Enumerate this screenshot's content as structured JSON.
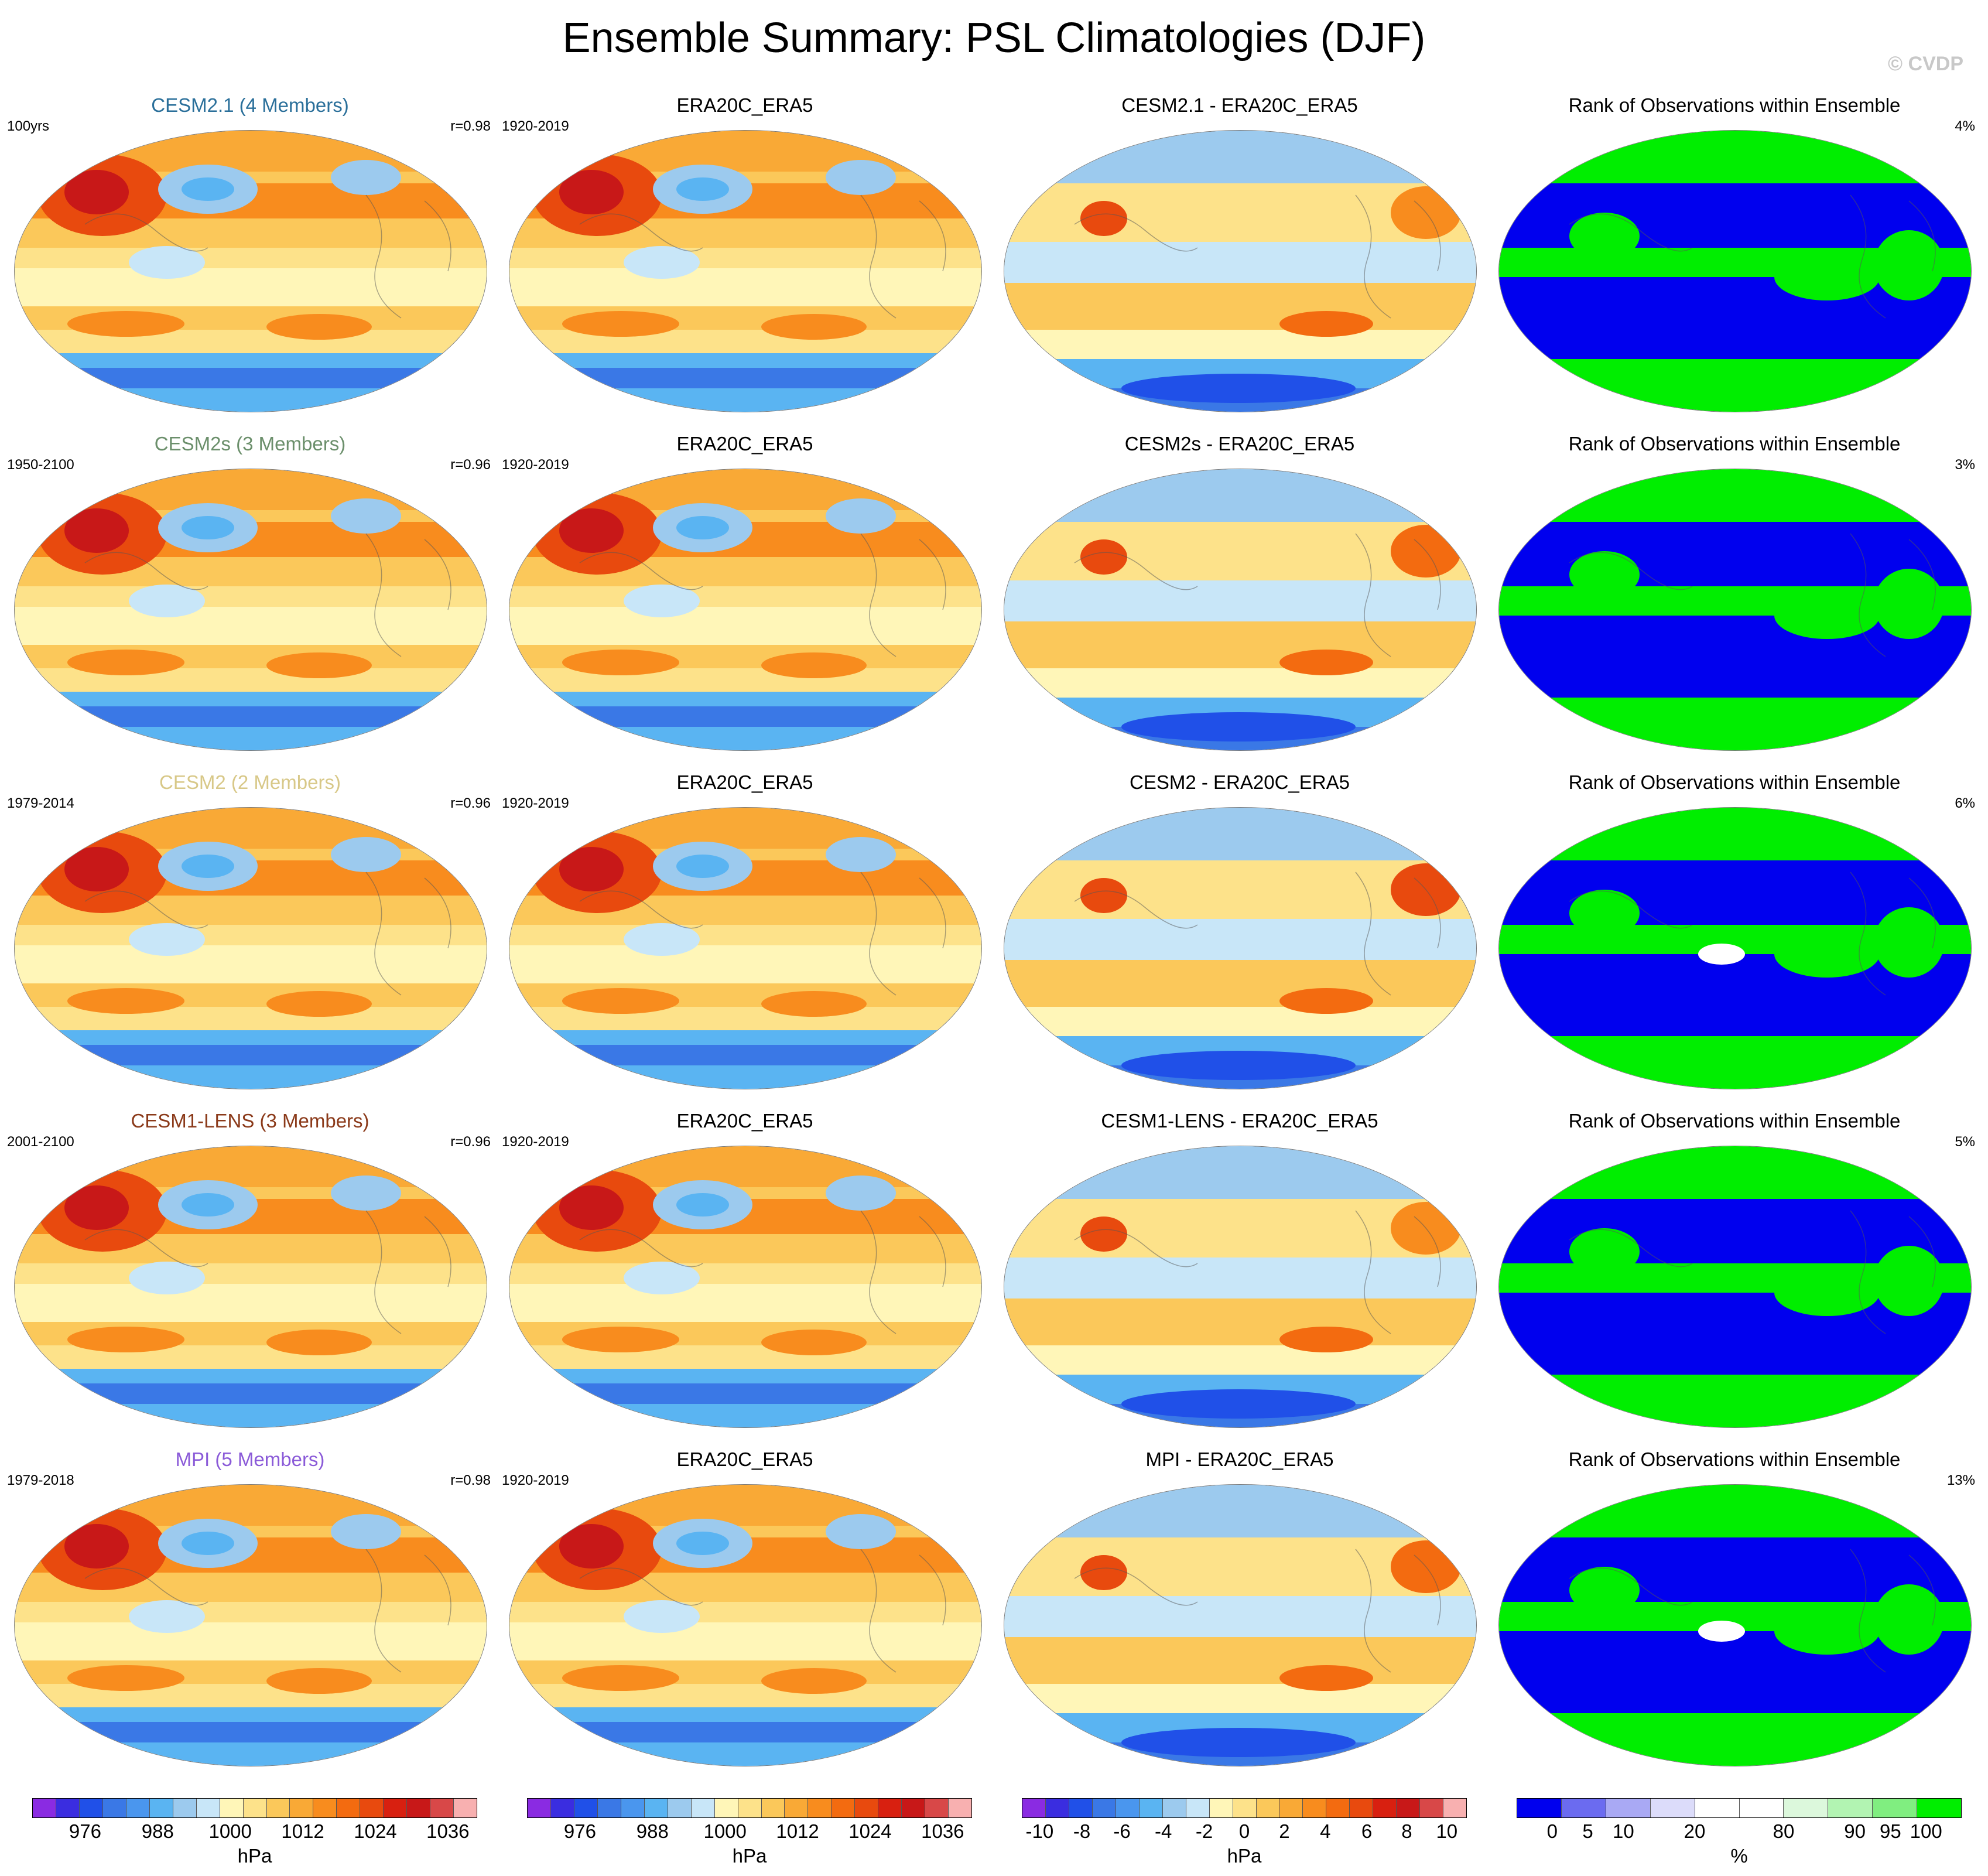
{
  "title": "Ensemble Summary: PSL Climatologies (DJF)",
  "credit": "© CVDP",
  "colors": {
    "psl_scale": [
      "#8a2be2",
      "#3a2de0",
      "#2050e8",
      "#3a78e6",
      "#4a96ee",
      "#5ab4f2",
      "#9ccaee",
      "#c8e6f8",
      "#fff6b8",
      "#fde28a",
      "#fbc85a",
      "#f9a936",
      "#f88c1e",
      "#f36b10",
      "#e84a0e",
      "#d82010",
      "#c81818",
      "#d84848",
      "#f8b0b0"
    ],
    "diff_scale": [
      "#8a2be2",
      "#3a2de0",
      "#2050e8",
      "#3a78e6",
      "#4a96ee",
      "#5ab4f2",
      "#9ccaee",
      "#c8e6f8",
      "#fff6b8",
      "#fde28a",
      "#fbc85a",
      "#f9a936",
      "#f88c1e",
      "#f36b10",
      "#e84a0e",
      "#d82010",
      "#c81818",
      "#d84848",
      "#f8b0b0"
    ],
    "rank_scale": [
      "#0000ee",
      "#6b6bf0",
      "#a9a9f4",
      "#dcdcfa",
      "#ffffff",
      "#ffffff",
      "#dcf8dc",
      "#b2f4b2",
      "#80ee80",
      "#00ee00"
    ]
  },
  "rows": [
    {
      "model": {
        "title": "CESM2.1 (4 Members)",
        "title_color": "#2a6f9a",
        "left": "100yrs",
        "right": "r=0.98"
      },
      "obs": {
        "title": "ERA20C_ERA5",
        "left": "1920-2019"
      },
      "diff": {
        "title": "CESM2.1 - ERA20C_ERA5"
      },
      "rank": {
        "title": "Rank of Observations within Ensemble",
        "right": "4%"
      }
    },
    {
      "model": {
        "title": "CESM2s (3 Members)",
        "title_color": "#6b8f6b",
        "left": "1950-2100",
        "right": "r=0.96"
      },
      "obs": {
        "title": "ERA20C_ERA5",
        "left": "1920-2019"
      },
      "diff": {
        "title": "CESM2s - ERA20C_ERA5"
      },
      "rank": {
        "title": "Rank of Observations within Ensemble",
        "right": "3%"
      }
    },
    {
      "model": {
        "title": "CESM2 (2 Members)",
        "title_color": "#d8c888",
        "left": "1979-2014",
        "right": "r=0.96"
      },
      "obs": {
        "title": "ERA20C_ERA5",
        "left": "1920-2019"
      },
      "diff": {
        "title": "CESM2 - ERA20C_ERA5"
      },
      "rank": {
        "title": "Rank of Observations within Ensemble",
        "right": "6%"
      }
    },
    {
      "model": {
        "title": "CESM1-LENS (3 Members)",
        "title_color": "#8b3a1a",
        "left": "2001-2100",
        "right": "r=0.96"
      },
      "obs": {
        "title": "ERA20C_ERA5",
        "left": "1920-2019"
      },
      "diff": {
        "title": "CESM1-LENS - ERA20C_ERA5"
      },
      "rank": {
        "title": "Rank of Observations within Ensemble",
        "right": "5%"
      }
    },
    {
      "model": {
        "title": "MPI (5 Members)",
        "title_color": "#8a5ad8",
        "left": "1979-2018",
        "right": "r=0.98"
      },
      "obs": {
        "title": "ERA20C_ERA5",
        "left": "1920-2019"
      },
      "diff": {
        "title": "MPI - ERA20C_ERA5"
      },
      "rank": {
        "title": "Rank of Observations within Ensemble",
        "right": "13%"
      }
    }
  ],
  "colorbars": [
    {
      "labels": [
        "976",
        "988",
        "1000",
        "1012",
        "1024",
        "1036"
      ],
      "units": "hPa"
    },
    {
      "labels": [
        "976",
        "988",
        "1000",
        "1012",
        "1024",
        "1036"
      ],
      "units": "hPa"
    },
    {
      "labels": [
        "-10",
        "-8",
        "-6",
        "-4",
        "-2",
        "0",
        "2",
        "4",
        "6",
        "8",
        "10"
      ],
      "units": "hPa"
    },
    {
      "labels": [
        "0",
        "5",
        "10",
        "20",
        "80",
        "90",
        "95",
        "100"
      ],
      "units": "%"
    }
  ]
}
